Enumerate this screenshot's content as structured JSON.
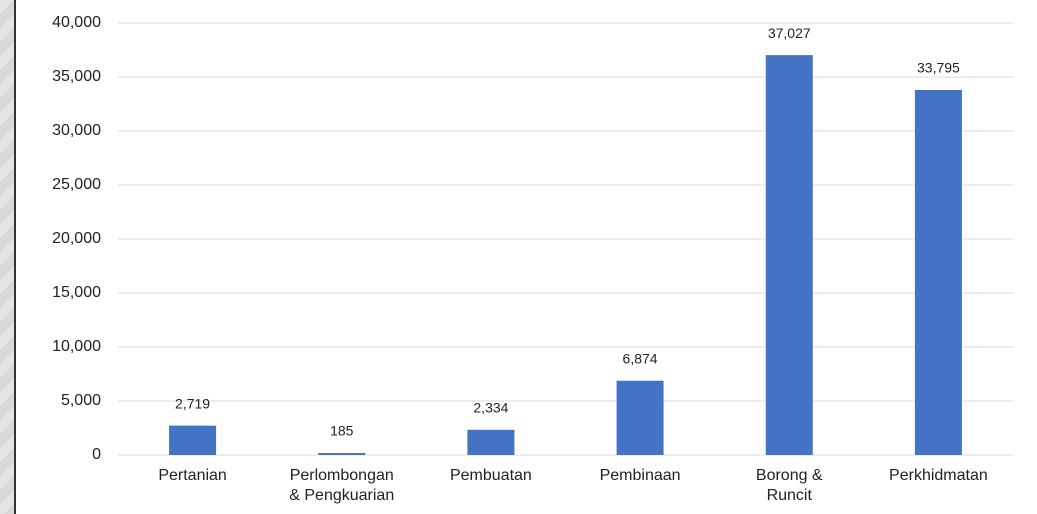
{
  "chart_data": {
    "type": "bar",
    "categories": [
      "Pertanian",
      "Perlombongan\n& Pengkuarian",
      "Pembuatan",
      "Pembinaan",
      "Borong &\nRuncit",
      "Perkhidmatan"
    ],
    "values": [
      2719,
      185,
      2334,
      6874,
      37027,
      33795
    ],
    "value_labels": [
      "2,719",
      "185",
      "2,334",
      "6,874",
      "37,027",
      "33,795"
    ],
    "color": "#4472c4",
    "ylim": [
      0,
      40000
    ],
    "yticks": [
      0,
      {
        "value": 5000,
        "label": "5,000"
      },
      {
        "value": 10000,
        "label": "10,000"
      },
      {
        "value": 15000,
        "label": "15,000"
      },
      {
        "value": 20000,
        "label": "20,000"
      },
      {
        "value": 25000,
        "label": "25,000"
      },
      {
        "value": 30000,
        "label": "30,000"
      },
      {
        "value": 35000,
        "label": "35,000"
      },
      {
        "value": 40000,
        "label": "40,000"
      }
    ],
    "grid": true
  }
}
